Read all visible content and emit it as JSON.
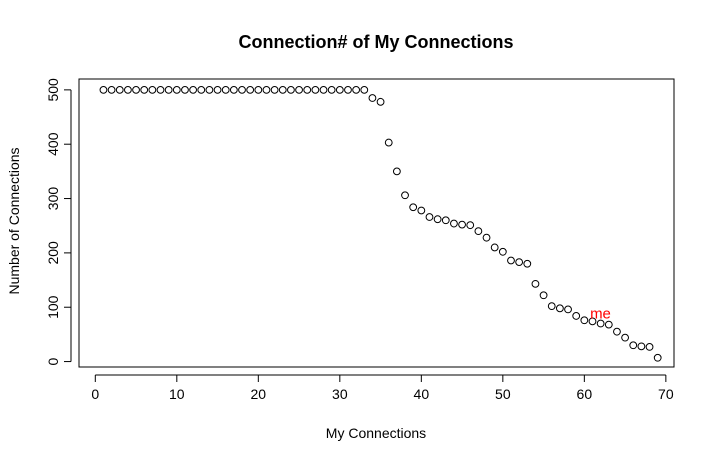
{
  "chart_data": {
    "type": "scatter",
    "title": "Connection# of My Connections",
    "xlabel": "My Connections",
    "ylabel": "Number of Connections",
    "xlim": [
      -2,
      71
    ],
    "ylim": [
      -10,
      520
    ],
    "xticks": [
      0,
      10,
      20,
      30,
      40,
      50,
      60,
      70
    ],
    "yticks": [
      0,
      100,
      200,
      300,
      400,
      500
    ],
    "grid": false,
    "legend": "none",
    "marker": "open-circle",
    "series": [
      {
        "x": [
          1,
          2,
          3,
          4,
          5,
          6,
          7,
          8,
          9,
          10,
          11,
          12,
          13,
          14,
          15,
          16,
          17,
          18,
          19,
          20,
          21,
          22,
          23,
          24,
          25,
          26,
          27,
          28,
          29,
          30,
          31,
          32,
          33,
          34,
          35,
          36,
          37,
          38,
          39,
          40,
          41,
          42,
          43,
          44,
          45,
          46,
          47,
          48,
          49,
          50,
          51,
          52,
          53,
          54,
          55,
          56,
          57,
          58,
          59,
          60,
          61,
          62,
          63,
          64,
          65,
          66,
          67,
          68,
          69
        ],
        "y": [
          500,
          500,
          500,
          500,
          500,
          500,
          500,
          500,
          500,
          500,
          500,
          500,
          500,
          500,
          500,
          500,
          500,
          500,
          500,
          500,
          500,
          500,
          500,
          500,
          500,
          500,
          500,
          500,
          500,
          500,
          500,
          500,
          500,
          485,
          478,
          403,
          350,
          306,
          284,
          278,
          266,
          262,
          260,
          254,
          252,
          251,
          240,
          228,
          210,
          202,
          186,
          183,
          180,
          143,
          122,
          102,
          98,
          96,
          84,
          76,
          74,
          70,
          68,
          55,
          44,
          30,
          28,
          27,
          7
        ]
      }
    ],
    "annotations": [
      {
        "text": "me",
        "x": 61,
        "y": 88,
        "color": "#ff0000"
      }
    ]
  }
}
